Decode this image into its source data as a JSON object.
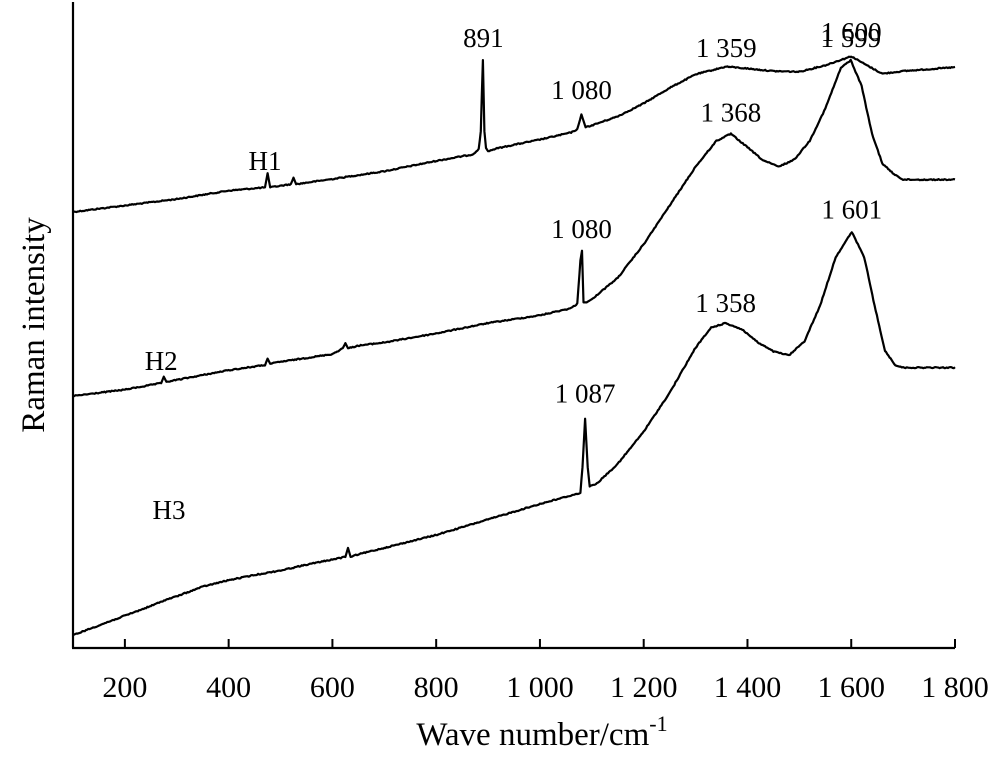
{
  "chart_data": {
    "type": "line",
    "title": "",
    "xlabel": "Wave number/cm",
    "xlabel_superscript": "-1",
    "ylabel": "Raman intensity",
    "xlim": [
      100,
      1800
    ],
    "ylim": [
      0,
      100
    ],
    "y_ticks_shown": false,
    "grid": false,
    "legend": "none",
    "line_color": "#000000",
    "x_ticks": [
      200,
      400,
      600,
      800,
      1000,
      1200,
      1400,
      1600,
      1800
    ],
    "x_tick_labels": [
      "200",
      "400",
      "600",
      "800",
      "1 000",
      "1 200",
      "1 400",
      "1 600",
      "1 800"
    ],
    "series": [
      {
        "name": "H1",
        "label_at": [
          470,
          74
        ],
        "x": [
          100,
          200,
          300,
          400,
          470,
          475,
          480,
          520,
          525,
          530,
          600,
          700,
          800,
          870,
          882,
          886,
          890,
          893,
          896,
          900,
          915,
          950,
          1000,
          1060,
          1072,
          1080,
          1088,
          1100,
          1150,
          1200,
          1250,
          1300,
          1359,
          1400,
          1450,
          1500,
          1550,
          1600,
          1630,
          1660,
          1700,
          1750,
          1800
        ],
        "y": [
          67.5,
          68.5,
          69.5,
          70.8,
          71.3,
          73.5,
          71.3,
          71.8,
          72.8,
          71.8,
          72.6,
          73.8,
          75.4,
          76.4,
          77.2,
          80,
          91,
          80,
          77.4,
          76.9,
          77.3,
          77.9,
          78.7,
          79.8,
          80.3,
          82.6,
          80.6,
          80.9,
          82.3,
          84.3,
          86.7,
          88.8,
          90,
          89.7,
          89.3,
          89.2,
          90.2,
          91.6,
          90.2,
          88.9,
          89.3,
          89.6,
          89.9
        ]
      },
      {
        "name": "H2",
        "label_at": [
          270,
          43
        ],
        "x": [
          100,
          200,
          270,
          275,
          280,
          300,
          400,
          470,
          475,
          480,
          500,
          600,
          620,
          625,
          630,
          650,
          700,
          800,
          900,
          1000,
          1060,
          1072,
          1078,
          1081,
          1084,
          1090,
          1100,
          1150,
          1200,
          1250,
          1300,
          1340,
          1368,
          1400,
          1430,
          1460,
          1490,
          1520,
          1550,
          1580,
          1599,
          1620,
          1640,
          1660,
          1680,
          1700,
          1750,
          1800
        ],
        "y": [
          39,
          40,
          41,
          42,
          41.2,
          41.5,
          43,
          43.8,
          44.8,
          44,
          44.3,
          45.5,
          46.4,
          47.2,
          46.4,
          46.8,
          47.3,
          48.7,
          50.3,
          51.5,
          52.6,
          53.3,
          60,
          61.5,
          53.5,
          53.5,
          54,
          57.3,
          62.5,
          68.5,
          74.5,
          78.5,
          79.6,
          77.5,
          75.5,
          74.5,
          75.6,
          78.5,
          83.5,
          89.8,
          91,
          87,
          79.6,
          75,
          73.5,
          72.5,
          72.5,
          72.5
        ]
      },
      {
        "name": "H3",
        "label_at": [
          285,
          20
        ],
        "x": [
          100,
          150,
          200,
          250,
          280,
          300,
          350,
          400,
          450,
          500,
          550,
          600,
          625,
          630,
          635,
          650,
          700,
          800,
          900,
          1000,
          1050,
          1078,
          1082,
          1087,
          1092,
          1096,
          1110,
          1150,
          1200,
          1250,
          1300,
          1330,
          1358,
          1390,
          1420,
          1450,
          1480,
          1510,
          1540,
          1570,
          1601,
          1625,
          1645,
          1665,
          1685,
          1700,
          1750,
          1800
        ],
        "y": [
          2,
          3.5,
          5,
          6.5,
          7.5,
          8,
          9.5,
          10.5,
          11.3,
          12,
          12.9,
          13.7,
          14.1,
          15.5,
          14.1,
          14.5,
          15.5,
          17.5,
          19.9,
          22.3,
          23.4,
          24,
          28,
          35.5,
          28,
          25,
          25.5,
          28.5,
          33.5,
          39.5,
          46.5,
          49.6,
          50.3,
          49.3,
          47.3,
          45.9,
          45.3,
          47.5,
          53,
          60.5,
          64.4,
          60.5,
          53,
          46,
          43.8,
          43.4,
          43.4,
          43.4
        ]
      }
    ],
    "annotations": [
      {
        "text": "891",
        "x": 891,
        "y": 93
      },
      {
        "text": "1 080",
        "x": 1080,
        "y": 85
      },
      {
        "text": "1 359",
        "x": 1359,
        "y": 91.5
      },
      {
        "text": "1 600",
        "x": 1600,
        "y": 94
      },
      {
        "text": "1 368",
        "x": 1368,
        "y": 81.5
      },
      {
        "text": "1 599",
        "x": 1599,
        "y": 93
      },
      {
        "text": "1 080",
        "x": 1080,
        "y": 63.5
      },
      {
        "text": "1 358",
        "x": 1358,
        "y": 52
      },
      {
        "text": "1 601",
        "x": 1601,
        "y": 66.5
      },
      {
        "text": "1 087",
        "x": 1087,
        "y": 38
      }
    ]
  }
}
